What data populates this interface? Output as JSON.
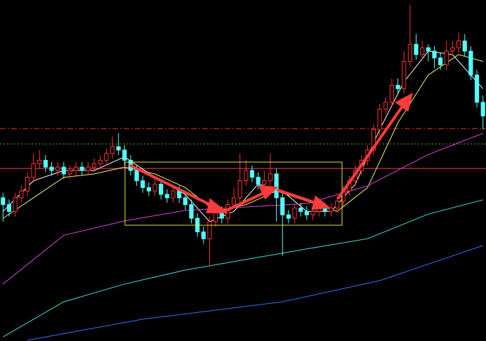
{
  "chart_data": {
    "type": "candlestick",
    "xlim": [
      -0.5,
      79.5
    ],
    "ylim": [
      0,
      100
    ],
    "up_color": "#ff3232",
    "down_color": "#54ffff",
    "open": [
      42,
      40,
      38,
      42,
      44,
      48,
      52,
      53,
      51,
      50,
      51,
      49,
      50,
      51,
      50,
      51,
      52,
      53,
      55,
      57,
      56,
      53,
      50,
      47,
      45,
      44,
      46,
      43,
      42,
      44,
      42,
      40,
      36,
      32,
      30,
      35,
      38,
      36,
      40,
      42,
      47,
      50,
      48,
      46,
      47,
      49,
      42,
      37,
      36,
      39,
      38,
      37,
      38,
      39,
      38,
      39,
      41,
      44,
      47,
      50,
      53,
      56,
      62,
      68,
      70,
      75,
      74,
      82,
      87,
      84,
      86,
      85,
      83,
      81,
      85,
      86,
      88,
      85,
      78,
      70
    ],
    "high": [
      43.5,
      41.5,
      43.5,
      45.5,
      49.5,
      55,
      56,
      54.5,
      52.5,
      52.5,
      52.5,
      51.5,
      52.5,
      52.5,
      52.5,
      53.5,
      54.5,
      56.5,
      60,
      61,
      57.5,
      54.5,
      51.5,
      48.5,
      46.5,
      47.5,
      47.5,
      44.5,
      45.5,
      45.5,
      43.5,
      41.5,
      37.5,
      33.5,
      36.5,
      39.5,
      39.5,
      41.5,
      45,
      55,
      53,
      51.5,
      49.5,
      50,
      55,
      50.5,
      43.5,
      38.5,
      40.5,
      40.5,
      39.5,
      39.5,
      40.5,
      40.5,
      40.5,
      42.5,
      45.5,
      48.5,
      51.5,
      54.5,
      57.5,
      63.5,
      69.5,
      71.5,
      77,
      77,
      85,
      98.5,
      90,
      88,
      87,
      86.5,
      84.5,
      88,
      88,
      90.5,
      90,
      86.5,
      79.5,
      72
    ],
    "low": [
      35,
      36.5,
      36.5,
      40.5,
      42.5,
      46.5,
      50.5,
      49.5,
      48.5,
      48.5,
      47.5,
      47.5,
      48.5,
      48.5,
      48.5,
      49.5,
      50.5,
      51.5,
      53.5,
      54.5,
      51.5,
      48.5,
      45.5,
      43.5,
      42.5,
      42.5,
      41.5,
      40.5,
      40.5,
      40.5,
      38.5,
      34.5,
      30.5,
      28.5,
      22,
      33.5,
      34.5,
      34.5,
      40.5,
      40.5,
      45.5,
      46.5,
      44.5,
      44.5,
      45.5,
      35,
      25,
      34.5,
      34.5,
      36.5,
      35.5,
      35.5,
      36.5,
      36.5,
      36.5,
      37.5,
      39.5,
      42.5,
      45.5,
      48.5,
      51.5,
      54.5,
      60.5,
      66.5,
      68.5,
      72.5,
      72.5,
      80.5,
      82.5,
      82.5,
      82,
      80,
      79.5,
      79.5,
      83.5,
      84.5,
      83.5,
      76.5,
      68.5,
      62
    ],
    "close": [
      40,
      38,
      42,
      44,
      48,
      52,
      53,
      51,
      50,
      51,
      49,
      50,
      51,
      50,
      51,
      52,
      53,
      55,
      57,
      56,
      53,
      50,
      47,
      45,
      44,
      46,
      43,
      42,
      44,
      42,
      40,
      36,
      32,
      30,
      35,
      38,
      36,
      40,
      42,
      47,
      50,
      48,
      46,
      47,
      49,
      42,
      37,
      36,
      39,
      38,
      37,
      38,
      39,
      38,
      39,
      41,
      44,
      47,
      50,
      53,
      56,
      62,
      68,
      70,
      75,
      74,
      82,
      87,
      84,
      86,
      85,
      83,
      81,
      85,
      86,
      88,
      85,
      78,
      70,
      66
    ],
    "series": [
      {
        "color": "#ffffff",
        "x": [
          0,
          5,
          10,
          15,
          20,
          25,
          30,
          34,
          38,
          42,
          46,
          50,
          54,
          58,
          62,
          66,
          70,
          74,
          79
        ],
        "values": [
          38,
          47,
          50,
          50,
          54,
          48,
          43,
          35,
          38,
          46,
          44,
          38,
          38,
          46,
          62,
          76,
          85,
          84,
          74
        ]
      },
      {
        "color": "#f0f070",
        "x": [
          0,
          5,
          10,
          15,
          20,
          25,
          30,
          35,
          40,
          45,
          50,
          55,
          60,
          65,
          70,
          75,
          79
        ],
        "values": [
          36,
          42,
          48,
          49,
          51,
          49,
          45,
          38,
          40,
          44,
          41,
          38,
          45,
          64,
          78,
          84,
          82
        ]
      },
      {
        "color": "#e040e0",
        "x": [
          0,
          10,
          20,
          30,
          40,
          50,
          60,
          70,
          79
        ],
        "values": [
          16.7,
          31,
          35.2,
          38.3,
          39.3,
          40.3,
          45.5,
          54.7,
          60.9
        ]
      },
      {
        "color": "#40e0e0",
        "x": [
          0,
          10,
          20,
          30,
          40,
          50,
          60,
          70,
          79
        ],
        "values": [
          1.2,
          11.5,
          16.7,
          20.8,
          23.9,
          27,
          30,
          37.2,
          41.4
        ]
      },
      {
        "color": "#3070ff",
        "x": [
          4,
          23,
          46,
          62,
          79
        ],
        "values": [
          0.2,
          6.4,
          11.5,
          17.7,
          28
        ]
      }
    ],
    "levels": [
      {
        "value": 62.3,
        "color": "#e03030",
        "style": "dashdot"
      },
      {
        "value": 57.8,
        "color": "#40c040",
        "style": "dotted"
      },
      {
        "value": 50.6,
        "color": "#ff3b5c",
        "style": "solid"
      }
    ]
  }
}
